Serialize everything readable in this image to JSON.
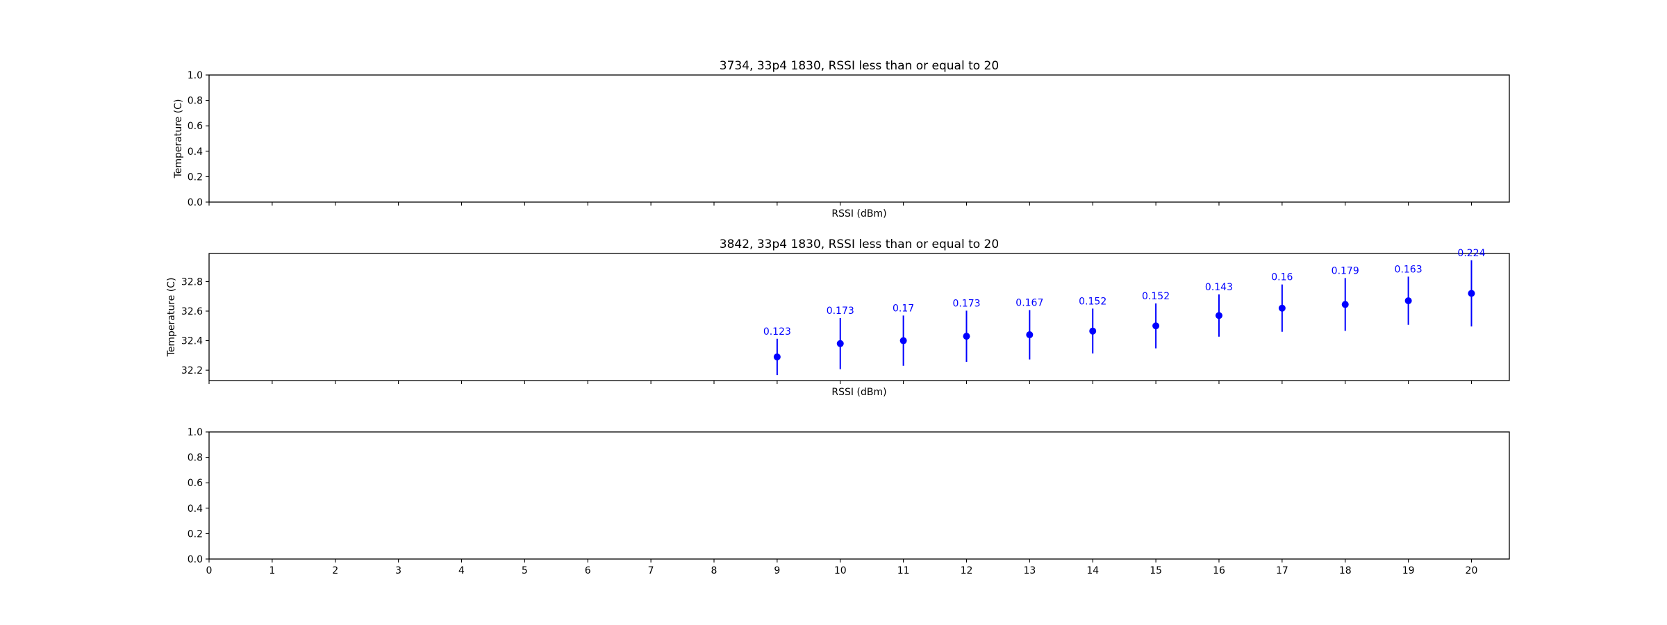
{
  "chart_data": [
    {
      "type": "scatter",
      "title": "3734, 33p4 1830, RSSI less than or equal to 20",
      "xlabel": "RSSI (dBm)",
      "ylabel": "Temperature (C)",
      "xlim": [
        0,
        20.6
      ],
      "ylim": [
        0.0,
        1.0
      ],
      "yticks": [
        "0.0",
        "0.2",
        "0.4",
        "0.6",
        "0.8",
        "1.0"
      ],
      "ytick_values": [
        0.0,
        0.2,
        0.4,
        0.6,
        0.8,
        1.0
      ],
      "grid": false,
      "series": []
    },
    {
      "type": "scatter",
      "title": "3842, 33p4 1830, RSSI less than or equal to 20",
      "xlabel": "RSSI (dBm)",
      "ylabel": "Temperature (C)",
      "xlim": [
        0,
        20.6
      ],
      "ylim": [
        32.13,
        32.99
      ],
      "yticks": [
        "32.2",
        "32.4",
        "32.6",
        "32.8"
      ],
      "ytick_values": [
        32.2,
        32.4,
        32.6,
        32.8
      ],
      "grid": false,
      "color": "#0000ff",
      "series": [
        {
          "x": [
            9,
            10,
            11,
            12,
            13,
            14,
            15,
            16,
            17,
            18,
            19,
            20
          ],
          "y": [
            32.29,
            32.38,
            32.4,
            32.43,
            32.44,
            32.465,
            32.5,
            32.57,
            32.62,
            32.645,
            32.67,
            32.72
          ],
          "error": [
            0.123,
            0.173,
            0.17,
            0.173,
            0.167,
            0.152,
            0.152,
            0.143,
            0.16,
            0.179,
            0.163,
            0.224
          ],
          "labels": [
            "0.123",
            "0.173",
            "0.17",
            "0.173",
            "0.167",
            "0.152",
            "0.152",
            "0.143",
            "0.16",
            "0.179",
            "0.163",
            "0.224"
          ]
        }
      ]
    },
    {
      "type": "scatter",
      "title": "",
      "xlabel": "",
      "ylabel": "",
      "xlim": [
        0,
        20.6
      ],
      "ylim": [
        0.0,
        1.0
      ],
      "yticks": [
        "0.0",
        "0.2",
        "0.4",
        "0.6",
        "0.8",
        "1.0"
      ],
      "ytick_values": [
        0.0,
        0.2,
        0.4,
        0.6,
        0.8,
        1.0
      ],
      "xticks": [
        "0",
        "1",
        "2",
        "3",
        "4",
        "5",
        "6",
        "7",
        "8",
        "9",
        "10",
        "11",
        "12",
        "13",
        "14",
        "15",
        "16",
        "17",
        "18",
        "19",
        "20"
      ],
      "grid": false,
      "series": []
    }
  ]
}
